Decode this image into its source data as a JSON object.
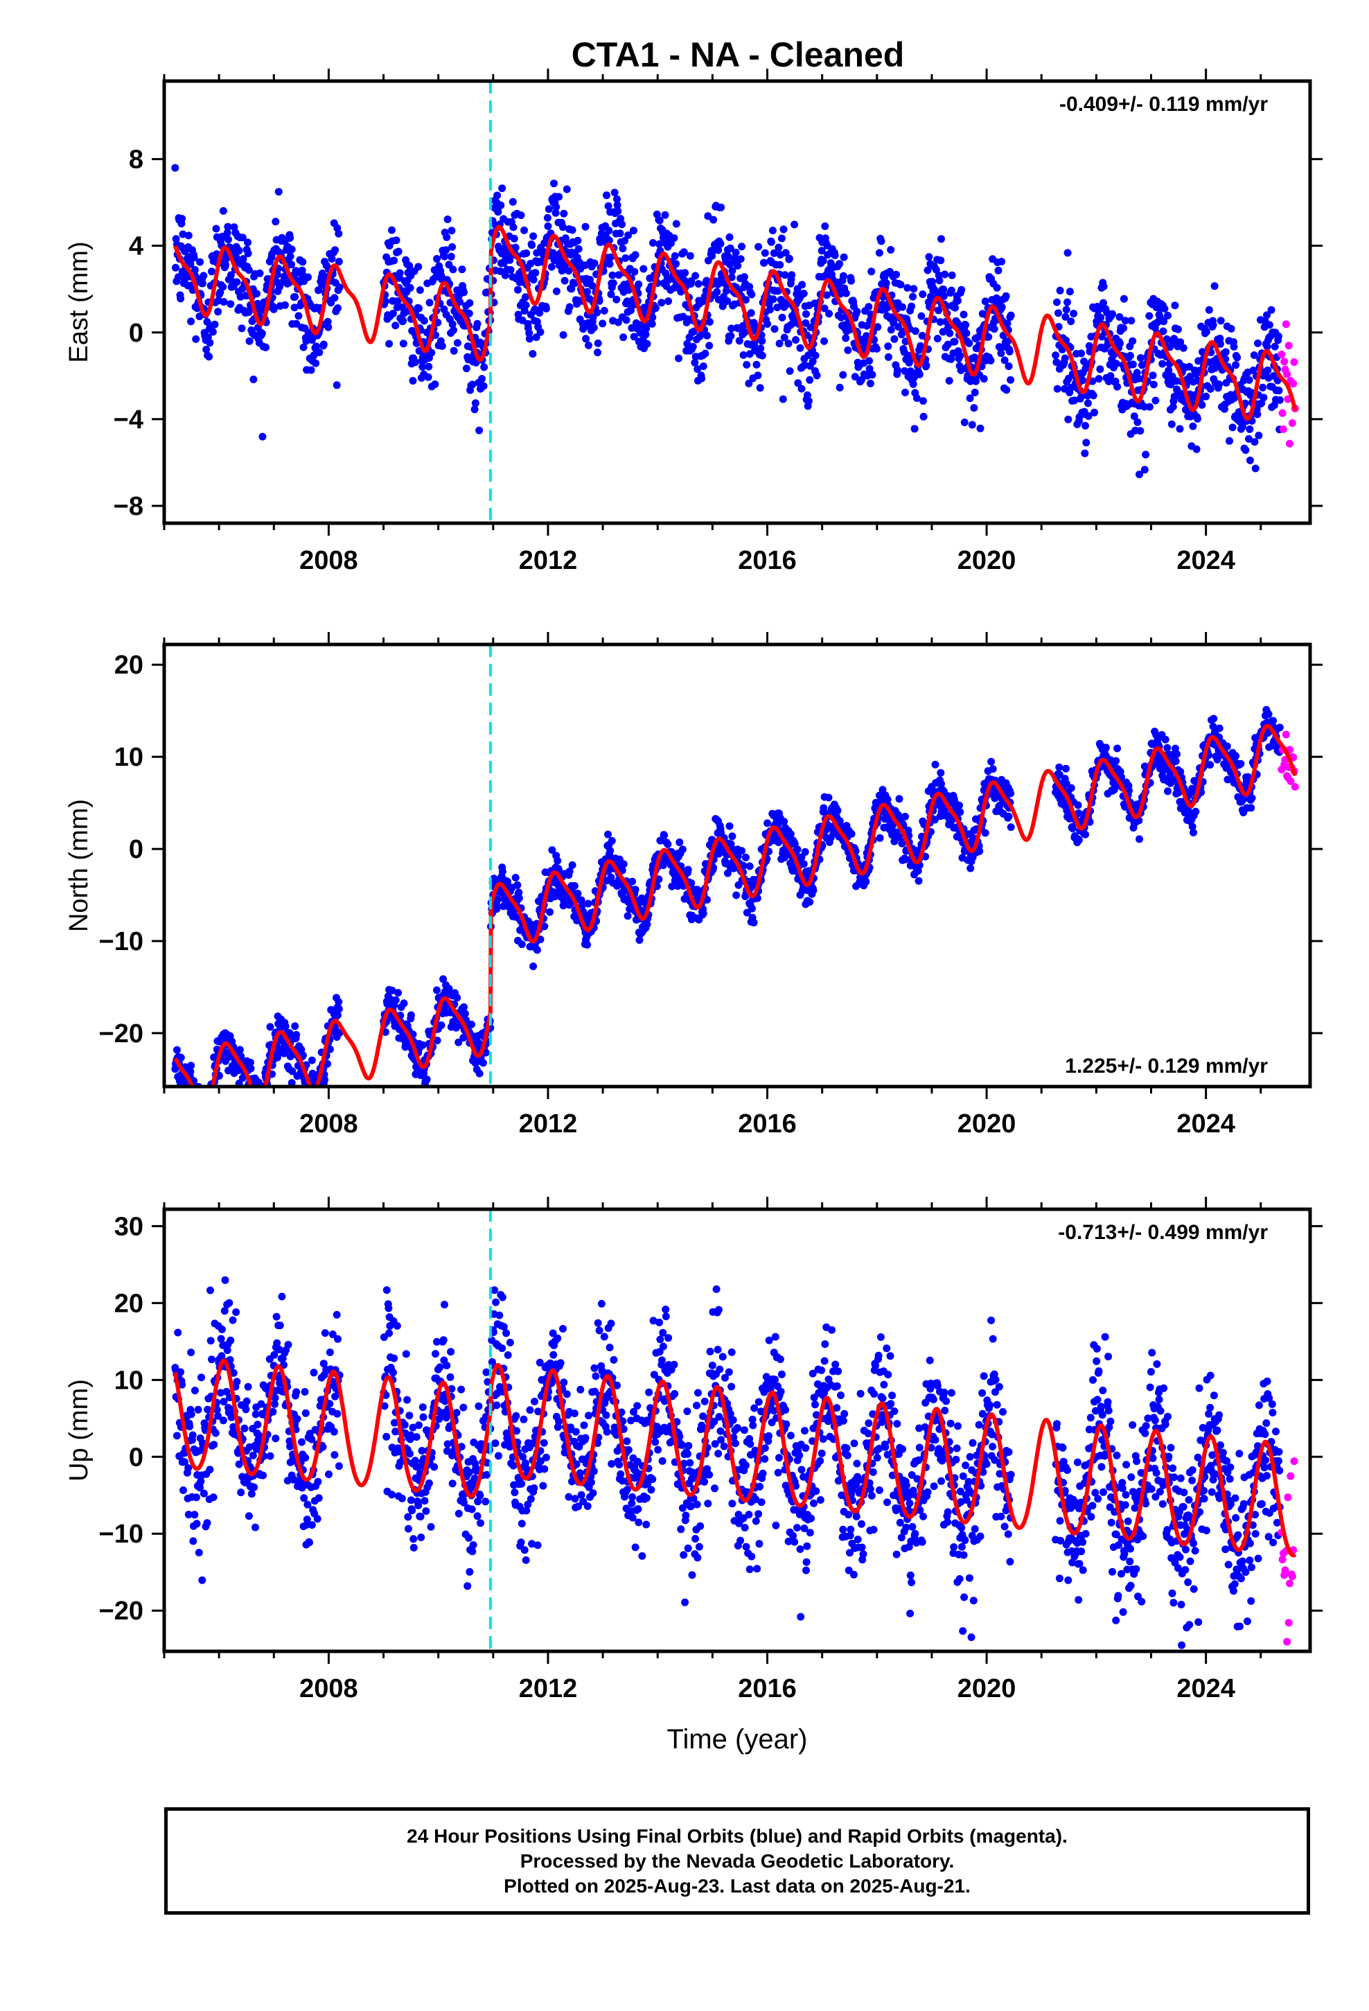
{
  "title": "CTA1  - NA - Cleaned",
  "colors": {
    "final_orbits": "#0000ff",
    "rapid_orbits": "#ff00ff",
    "model": "#ff0000",
    "offset": "#00e5e5"
  },
  "chart_data": [
    {
      "type": "scatter",
      "component": "east",
      "ylabel": "East (mm)",
      "xlabel": "",
      "xlim": [
        2005.0,
        2025.9
      ],
      "ylim": [
        -8.8,
        11.6
      ],
      "xticks": [
        2008,
        2012,
        2016,
        2020,
        2024
      ],
      "xtick_labels": [
        "2008",
        "2012",
        "2016",
        "2020",
        "2024"
      ],
      "yticks": [
        -8,
        -4,
        0,
        4,
        8
      ],
      "ytick_labels": [
        "−8",
        "−4",
        "0",
        "4",
        "8"
      ],
      "rate_label": "-0.409+/- 0.119 mm/yr",
      "rate_position": "top-right",
      "offset_epoch": 2010.95,
      "data_start": 2005.2,
      "final_end": 2025.35,
      "rapid_start": 2025.38,
      "data_end": 2025.63,
      "gaps": [
        [
          2008.2,
          2009.0
        ],
        [
          2020.45,
          2021.25
        ]
      ],
      "model": {
        "pre": 0.4,
        "post": 3.4,
        "rate": -0.409,
        "ref_year": 2011.0,
        "amp1": 1.4,
        "phase1": 0.3,
        "amp2": 0.5,
        "phase2": 1.0
      },
      "noise": 1.3,
      "series": [
        {
          "name": "Final Orbits (blue)",
          "color": "#0000ff"
        },
        {
          "name": "Rapid Orbits (magenta)",
          "color": "#ff00ff"
        }
      ]
    },
    {
      "type": "scatter",
      "component": "north",
      "ylabel": "North (mm)",
      "xlabel": "",
      "xlim": [
        2005.0,
        2025.9
      ],
      "ylim": [
        -25.8,
        22.2
      ],
      "xticks": [
        2008,
        2012,
        2016,
        2020,
        2024
      ],
      "xtick_labels": [
        "2008",
        "2012",
        "2016",
        "2020",
        "2024"
      ],
      "yticks": [
        -20,
        -10,
        0,
        10,
        20
      ],
      "ytick_labels": [
        "−20",
        "−10",
        "0",
        "10",
        "20"
      ],
      "rate_label": "1.225+/- 0.129 mm/yr",
      "rate_position": "bottom-right",
      "offset_epoch": 2010.95,
      "data_start": 2005.2,
      "final_end": 2025.35,
      "rapid_start": 2025.38,
      "data_end": 2025.63,
      "gaps": [
        [
          2008.2,
          2009.0
        ],
        [
          2020.45,
          2021.25
        ]
      ],
      "model": {
        "pre": -18.4,
        "post": -7.2,
        "rate": 1.225,
        "ref_year": 2011.0,
        "amp1": 3.2,
        "phase1": 0.4,
        "amp2": 0.8,
        "phase2": 1.2
      },
      "noise": 1.2,
      "series": [
        {
          "name": "Final Orbits (blue)",
          "color": "#0000ff"
        },
        {
          "name": "Rapid Orbits (magenta)",
          "color": "#ff00ff"
        }
      ]
    },
    {
      "type": "scatter",
      "component": "up",
      "ylabel": "Up (mm)",
      "xlabel": "Time (year)",
      "xlim": [
        2005.0,
        2025.9
      ],
      "ylim": [
        -25.3,
        32.2
      ],
      "xticks": [
        2008,
        2012,
        2016,
        2020,
        2024
      ],
      "xtick_labels": [
        "2008",
        "2012",
        "2016",
        "2020",
        "2024"
      ],
      "yticks": [
        -20,
        -10,
        0,
        10,
        20,
        30
      ],
      "ytick_labels": [
        "−20",
        "−10",
        "0",
        "10",
        "20",
        "30"
      ],
      "rate_label": "-0.713+/- 0.499 mm/yr",
      "rate_position": "top-right",
      "offset_epoch": 2010.95,
      "data_start": 2005.2,
      "final_end": 2025.35,
      "rapid_start": 2025.38,
      "data_end": 2025.63,
      "gaps": [
        [
          2008.2,
          2009.0
        ],
        [
          2020.45,
          2021.25
        ]
      ],
      "model": {
        "pre": 1.2,
        "post": 4.2,
        "rate": -0.713,
        "ref_year": 2011.0,
        "amp1": 7.2,
        "phase1": 1.0,
        "amp2": 0.6,
        "phase2": 0.5
      },
      "noise": 4.8,
      "series": [
        {
          "name": "Final Orbits (blue)",
          "color": "#0000ff"
        },
        {
          "name": "Rapid Orbits (magenta)",
          "color": "#ff00ff"
        }
      ]
    }
  ],
  "footer": {
    "line1": "24 Hour Positions Using Final Orbits (blue) and Rapid Orbits (magenta).",
    "line2": "Processed by the Nevada Geodetic Laboratory.",
    "line3": "Plotted on 2025-Aug-23. Last data on 2025-Aug-21."
  }
}
